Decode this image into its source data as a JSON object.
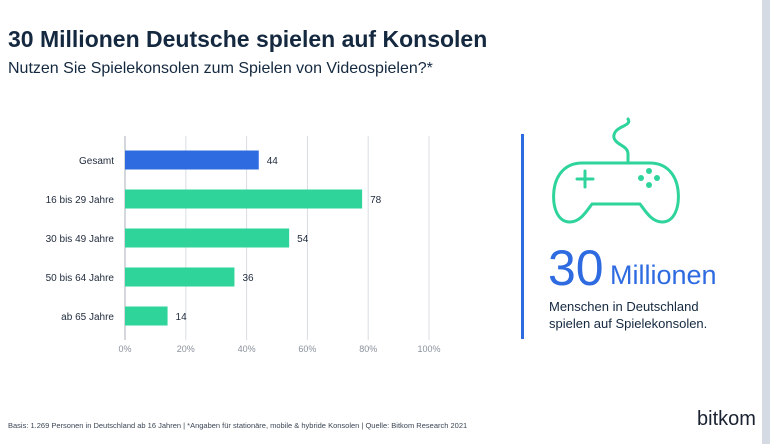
{
  "header": {
    "title": "30 Millionen Deutsche spielen auf Konsolen",
    "subtitle": "Nutzen Sie Spielekonsolen zum Spielen von Videospielen?*"
  },
  "chart_data": {
    "type": "bar",
    "orientation": "horizontal",
    "categories": [
      "Gesamt",
      "16 bis 29 Jahre",
      "30 bis 49 Jahre",
      "50 bis 64 Jahre",
      "ab 65 Jahre"
    ],
    "values": [
      44,
      78,
      54,
      36,
      14
    ],
    "value_labels": [
      "44",
      "78",
      "54",
      "36",
      "14"
    ],
    "highlight_index": 0,
    "xlim": [
      0,
      100
    ],
    "xticks": [
      0,
      20,
      40,
      60,
      80,
      100
    ],
    "xtick_labels": [
      "0%",
      "20%",
      "40%",
      "60%",
      "80%",
      "100%"
    ],
    "grid": true,
    "colors": {
      "highlight": "#2f6be0",
      "default": "#2ed49a",
      "grid": "#d9dde3",
      "text": "#1f2a3c",
      "tick": "#8a919c"
    }
  },
  "highlight": {
    "number": "30",
    "unit": "Millionen",
    "caption_line1": "Menschen in Deutschland",
    "caption_line2": "spielen auf Spielekonsolen.",
    "icon": "gamepad-icon",
    "icon_color": "#2ed49a",
    "accent_color": "#2f6be0"
  },
  "footer": {
    "note": "Basis: 1.269 Personen in Deutschland ab 16 Jahren | *Angaben für stationäre, mobile & hybride Konsolen | Quelle: Bitkom Research 2021",
    "logo": "bitkom"
  }
}
